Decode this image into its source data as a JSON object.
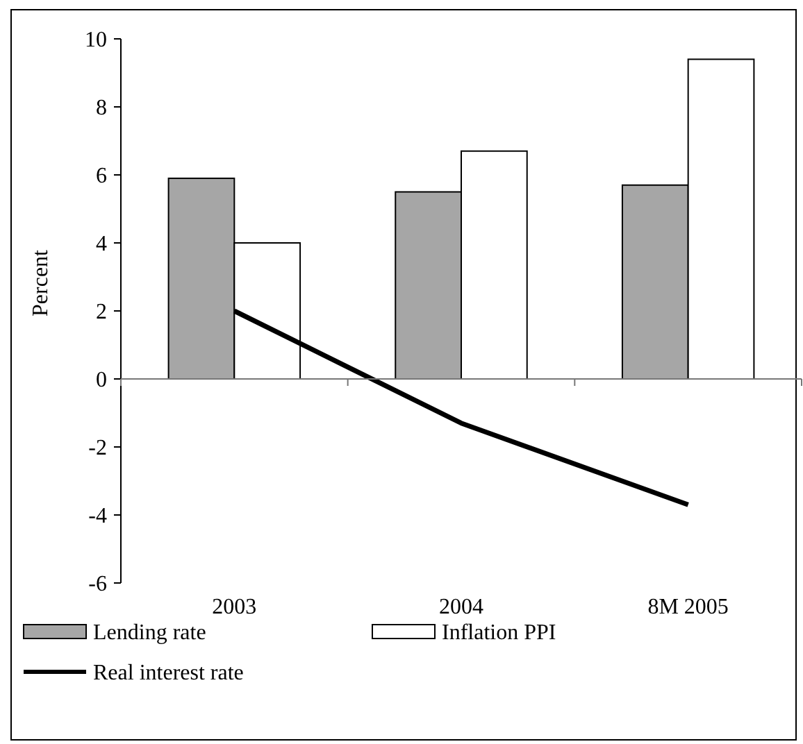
{
  "chart_data": {
    "type": "bar",
    "ylabel": "Percent",
    "categories": [
      "2003",
      "2004",
      "8M 2005"
    ],
    "series": [
      {
        "name": "Lending rate",
        "color": "#a6a6a6",
        "values": [
          5.9,
          5.5,
          5.7
        ]
      },
      {
        "name": "Inflation PPI",
        "color": "#ffffff",
        "values": [
          4.0,
          6.7,
          9.4
        ]
      },
      {
        "name": "Real interest rate",
        "type": "line",
        "color": "#000000",
        "values": [
          2.0,
          -1.3,
          -3.7
        ]
      }
    ],
    "ylim": [
      -6,
      10
    ],
    "yticks": [
      -6,
      -4,
      -2,
      0,
      2,
      4,
      6,
      8,
      10
    ],
    "legend": "bottom"
  }
}
